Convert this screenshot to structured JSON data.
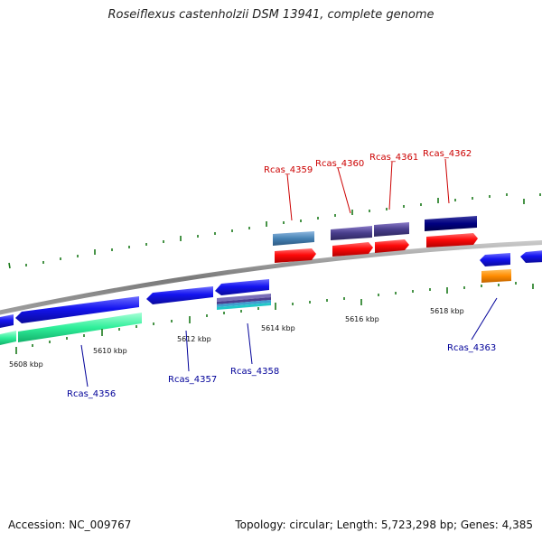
{
  "title": "Roseiflexus castenholzii DSM 13941, complete genome",
  "footer": {
    "accession": "Accession: NC_009767",
    "summary": "Topology: circular; Length: 5,723,298 bp; Genes: 4,385"
  },
  "colors": {
    "backbone": "#8c8c8c",
    "tick": "#1a7a1a",
    "forward_label": "#cc0000",
    "reverse_label": "#000099"
  },
  "kbp_labels": [
    "5608 kbp",
    "5610 kbp",
    "5612 kbp",
    "5614 kbp",
    "5616 kbp",
    "5618 kbp"
  ],
  "forward_genes": [
    {
      "label": "Rcas_4359"
    },
    {
      "label": "Rcas_4360"
    },
    {
      "label": "Rcas_4361"
    },
    {
      "label": "Rcas_4362"
    }
  ],
  "reverse_genes": [
    {
      "label": "Rcas_4356"
    },
    {
      "label": "Rcas_4357"
    },
    {
      "label": "Rcas_4358"
    },
    {
      "label": "Rcas_4363"
    }
  ]
}
